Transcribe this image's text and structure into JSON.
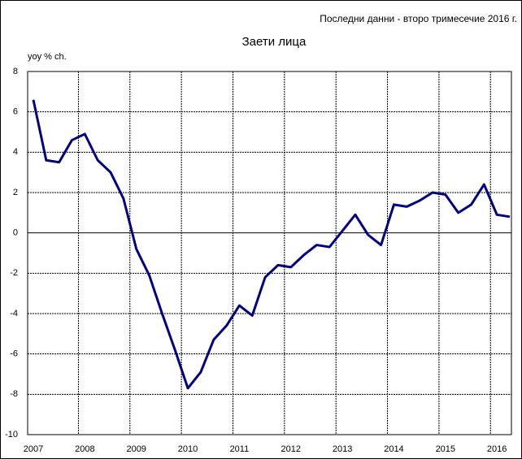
{
  "chart_data": {
    "type": "line",
    "note": "Последни данни - второ тримесечие 2016 г.",
    "title": "Заети лица",
    "y_label": "yoy % ch.",
    "categories": [
      "2007",
      null,
      null,
      null,
      "2008",
      null,
      null,
      null,
      "2009",
      null,
      null,
      null,
      "2010",
      null,
      null,
      null,
      "2011",
      null,
      null,
      null,
      "2012",
      null,
      null,
      null,
      "2013",
      null,
      null,
      null,
      "2014",
      null,
      null,
      null,
      "2015",
      null,
      null,
      null,
      "2016",
      null
    ],
    "series": [
      {
        "name": "Заети лица",
        "color": "#000080",
        "values": [
          6.6,
          3.6,
          3.5,
          4.6,
          4.9,
          3.6,
          3.0,
          1.7,
          -0.8,
          -2.1,
          -4.0,
          -5.8,
          -7.7,
          -6.9,
          -5.3,
          -4.6,
          -3.6,
          -4.1,
          -2.2,
          -1.6,
          -1.7,
          -1.1,
          -0.6,
          -0.7,
          0.1,
          0.9,
          -0.1,
          -0.6,
          1.4,
          1.3,
          1.6,
          2.0,
          1.9,
          1.0,
          1.4,
          2.4,
          0.9,
          0.8
        ]
      }
    ],
    "ylim": [
      -10,
      8
    ],
    "yticks": [
      -10,
      -8,
      -6,
      -4,
      -2,
      0,
      2,
      4,
      6,
      8
    ],
    "grid": true
  }
}
